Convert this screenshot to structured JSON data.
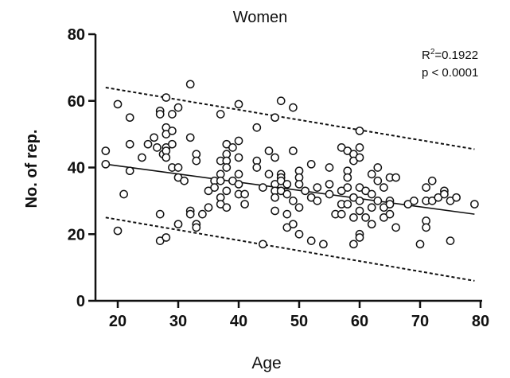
{
  "chart_data": {
    "type": "scatter",
    "title": "Women",
    "xlabel": "Age",
    "ylabel": "No. of rep.",
    "xlim": [
      17,
      80
    ],
    "ylim": [
      0,
      80
    ],
    "x_ticks": [
      20,
      30,
      40,
      50,
      60,
      70,
      80
    ],
    "y_ticks": [
      0,
      20,
      40,
      60,
      80
    ],
    "annotation": {
      "r2_label": "R",
      "r2_sup": "2",
      "r2_value": "=0.1922",
      "p_text": "p < 0.0001"
    },
    "fit_line": {
      "x": [
        18,
        79
      ],
      "y": [
        41,
        26
      ]
    },
    "prediction_band": {
      "upper": {
        "x": [
          18,
          79
        ],
        "y": [
          64,
          45.5
        ]
      },
      "lower": {
        "x": [
          18,
          79
        ],
        "y": [
          25,
          6
        ]
      }
    },
    "points": [
      [
        18,
        45
      ],
      [
        18,
        41
      ],
      [
        20,
        59
      ],
      [
        20,
        21
      ],
      [
        21,
        32
      ],
      [
        22,
        55
      ],
      [
        22,
        47
      ],
      [
        22,
        39
      ],
      [
        24,
        43
      ],
      [
        25,
        47
      ],
      [
        26,
        49
      ],
      [
        26.5,
        46
      ],
      [
        27,
        57
      ],
      [
        27,
        56
      ],
      [
        27,
        26
      ],
      [
        27,
        18
      ],
      [
        27.5,
        44
      ],
      [
        28,
        61
      ],
      [
        28,
        52
      ],
      [
        28,
        50
      ],
      [
        28,
        46
      ],
      [
        28,
        45
      ],
      [
        28,
        43
      ],
      [
        28,
        19
      ],
      [
        29,
        56
      ],
      [
        29,
        51
      ],
      [
        29,
        47
      ],
      [
        29,
        40
      ],
      [
        30,
        58
      ],
      [
        30,
        40
      ],
      [
        30,
        37
      ],
      [
        30,
        23
      ],
      [
        31,
        36
      ],
      [
        32,
        65
      ],
      [
        32,
        49
      ],
      [
        32,
        27
      ],
      [
        32,
        26
      ],
      [
        33,
        44
      ],
      [
        33,
        42
      ],
      [
        33,
        23
      ],
      [
        33,
        22
      ],
      [
        34,
        26
      ],
      [
        35,
        33
      ],
      [
        35,
        28
      ],
      [
        36,
        36
      ],
      [
        36,
        34
      ],
      [
        37,
        56
      ],
      [
        37,
        42
      ],
      [
        37,
        38
      ],
      [
        37,
        36
      ],
      [
        37,
        31
      ],
      [
        37,
        29
      ],
      [
        38,
        47
      ],
      [
        38,
        44
      ],
      [
        38,
        42
      ],
      [
        38,
        40
      ],
      [
        38,
        33
      ],
      [
        38,
        28
      ],
      [
        39,
        46
      ],
      [
        39,
        36
      ],
      [
        40,
        59
      ],
      [
        40,
        48
      ],
      [
        40,
        43
      ],
      [
        40,
        38
      ],
      [
        40,
        35
      ],
      [
        40,
        32
      ],
      [
        41,
        32
      ],
      [
        41,
        29
      ],
      [
        43,
        52
      ],
      [
        43,
        42
      ],
      [
        43,
        40
      ],
      [
        44,
        34
      ],
      [
        44,
        17
      ],
      [
        45,
        45
      ],
      [
        45,
        38
      ],
      [
        46,
        55
      ],
      [
        46,
        43
      ],
      [
        46,
        35
      ],
      [
        46,
        33
      ],
      [
        46,
        31
      ],
      [
        46,
        27
      ],
      [
        47,
        60
      ],
      [
        47,
        38
      ],
      [
        47,
        37
      ],
      [
        47,
        36
      ],
      [
        47,
        33
      ],
      [
        48,
        35
      ],
      [
        48,
        32
      ],
      [
        48,
        26
      ],
      [
        48,
        22
      ],
      [
        49,
        58
      ],
      [
        49,
        45
      ],
      [
        49,
        30
      ],
      [
        49,
        23
      ],
      [
        50,
        39
      ],
      [
        50,
        37
      ],
      [
        50,
        35
      ],
      [
        50,
        28
      ],
      [
        50,
        20
      ],
      [
        51,
        33
      ],
      [
        52,
        41
      ],
      [
        52,
        31
      ],
      [
        52,
        18
      ],
      [
        53,
        34
      ],
      [
        53,
        30
      ],
      [
        54,
        17
      ],
      [
        55,
        40
      ],
      [
        55,
        35
      ],
      [
        55,
        32
      ],
      [
        56,
        26
      ],
      [
        57,
        46
      ],
      [
        57,
        33
      ],
      [
        57,
        29
      ],
      [
        57,
        26
      ],
      [
        58,
        45
      ],
      [
        58,
        39
      ],
      [
        58,
        37
      ],
      [
        58,
        34
      ],
      [
        58,
        29
      ],
      [
        59,
        44
      ],
      [
        59,
        42
      ],
      [
        59,
        31
      ],
      [
        59,
        25
      ],
      [
        59,
        17
      ],
      [
        60,
        51
      ],
      [
        60,
        46
      ],
      [
        60,
        43
      ],
      [
        60,
        34
      ],
      [
        60,
        30
      ],
      [
        60,
        27
      ],
      [
        60,
        20
      ],
      [
        60,
        19
      ],
      [
        61,
        33
      ],
      [
        61,
        25
      ],
      [
        62,
        38
      ],
      [
        62,
        32
      ],
      [
        62,
        28
      ],
      [
        62,
        23
      ],
      [
        63,
        40
      ],
      [
        63,
        36
      ],
      [
        63,
        30
      ],
      [
        64,
        34
      ],
      [
        64,
        28
      ],
      [
        64,
        25
      ],
      [
        65,
        37
      ],
      [
        65,
        30
      ],
      [
        65,
        29
      ],
      [
        65,
        26
      ],
      [
        66,
        37
      ],
      [
        66,
        22
      ],
      [
        68,
        29
      ],
      [
        69,
        30
      ],
      [
        70,
        17
      ],
      [
        71,
        34
      ],
      [
        71,
        30
      ],
      [
        71,
        24
      ],
      [
        71,
        22
      ],
      [
        72,
        36
      ],
      [
        72,
        30
      ],
      [
        73,
        31
      ],
      [
        74,
        33
      ],
      [
        74,
        32
      ],
      [
        75,
        30
      ],
      [
        75,
        18
      ],
      [
        76,
        31
      ],
      [
        79,
        29
      ]
    ]
  }
}
